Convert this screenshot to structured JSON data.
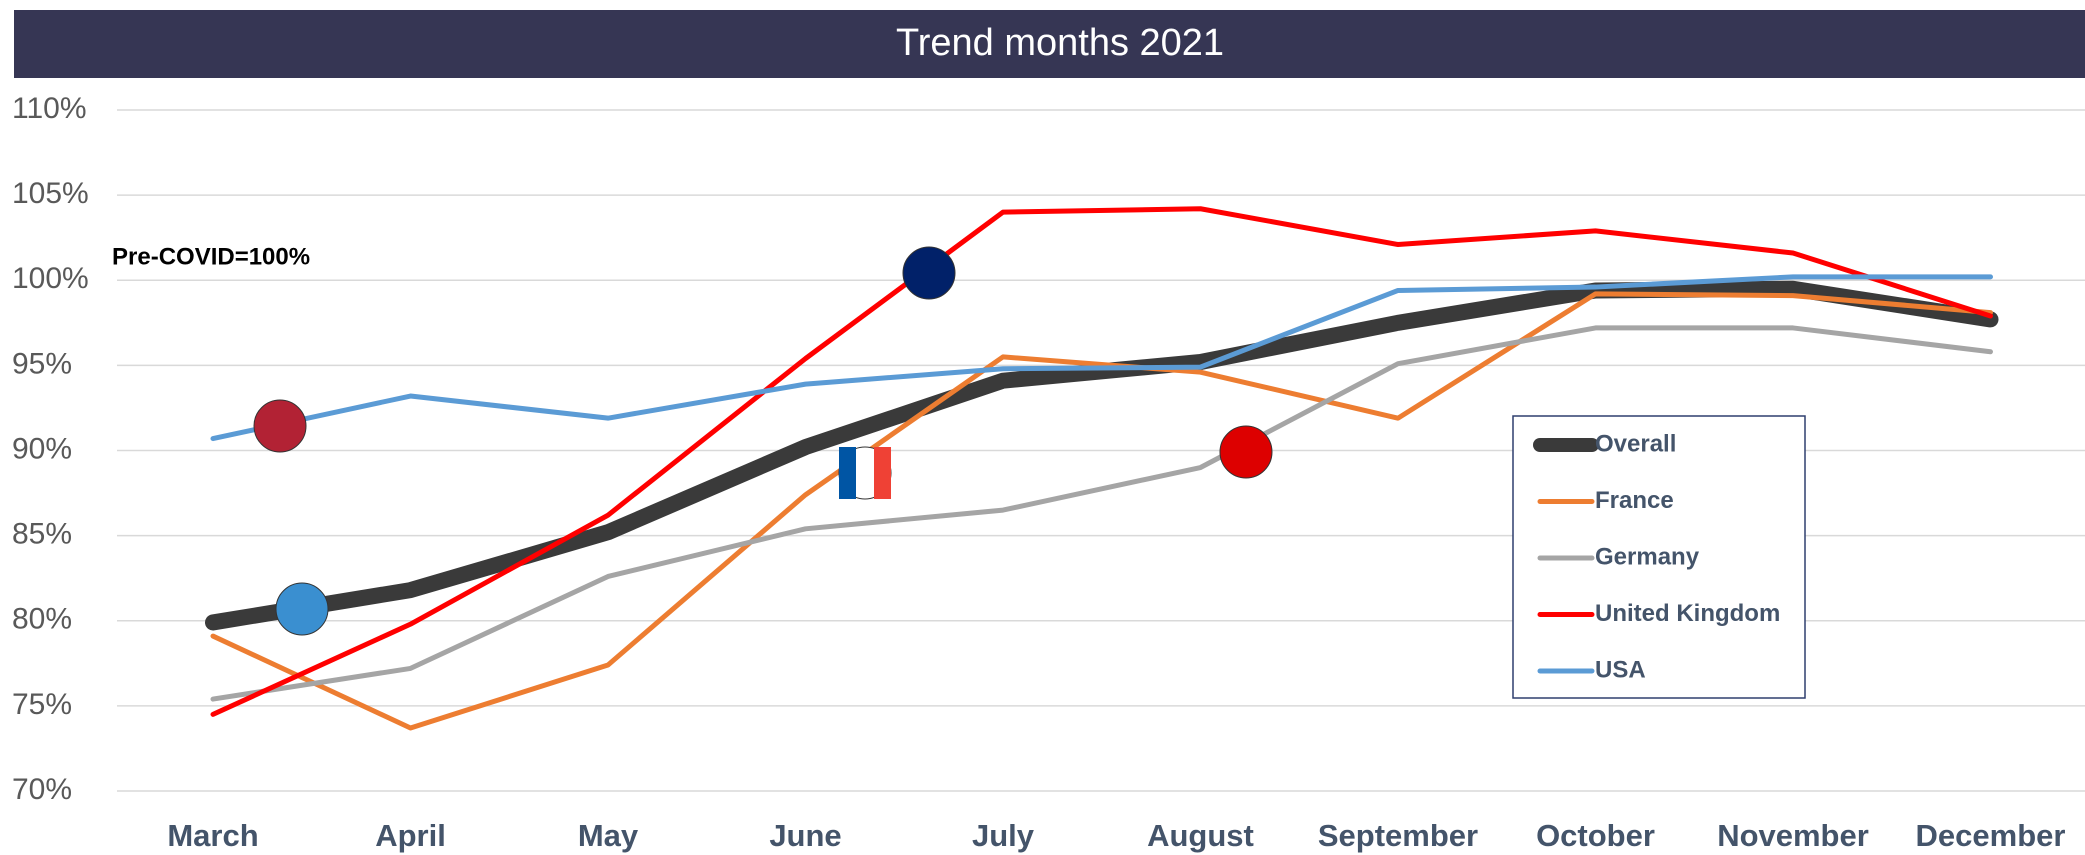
{
  "chart_data": {
    "type": "line",
    "title": "Trend months 2021",
    "annotation": "Pre-COVID=100%",
    "categories": [
      "March",
      "April",
      "May",
      "June",
      "July",
      "August",
      "September",
      "October",
      "November",
      "December"
    ],
    "series": [
      {
        "name": "Overall",
        "color": "#3a3a3a",
        "values": [
          79.9,
          81.8,
          85.2,
          90.2,
          94.1,
          95.2,
          97.5,
          99.4,
          99.5,
          97.7
        ]
      },
      {
        "name": "France",
        "color": "#ed7d31",
        "values": [
          79.1,
          73.7,
          77.4,
          87.4,
          95.5,
          94.6,
          91.9,
          99.2,
          99.1,
          98.1
        ]
      },
      {
        "name": "Germany",
        "color": "#a5a5a5",
        "values": [
          75.4,
          77.2,
          82.6,
          85.4,
          86.5,
          89.0,
          95.1,
          97.2,
          97.2,
          95.8
        ]
      },
      {
        "name": "United Kingdom",
        "color": "#ff0000",
        "values": [
          74.5,
          79.8,
          86.2,
          95.4,
          104.0,
          104.2,
          102.1,
          102.9,
          101.6,
          97.9
        ]
      },
      {
        "name": "USA",
        "color": "#5b9bd5",
        "values": [
          90.7,
          93.2,
          91.9,
          93.9,
          94.8,
          94.9,
          99.4,
          99.6,
          100.2,
          100.2
        ]
      }
    ],
    "ylim": [
      70,
      110
    ],
    "yticks": [
      {
        "value": 70,
        "label": "70%"
      },
      {
        "value": 75,
        "label": "75%"
      },
      {
        "value": 80,
        "label": "80%"
      },
      {
        "value": 85,
        "label": "85%"
      },
      {
        "value": 90,
        "label": "90%"
      },
      {
        "value": 95,
        "label": "95%"
      },
      {
        "value": 100,
        "label": "100%"
      },
      {
        "value": 105,
        "label": "105%"
      },
      {
        "value": 110,
        "label": "110%"
      }
    ],
    "grid": true,
    "legend": "right"
  }
}
